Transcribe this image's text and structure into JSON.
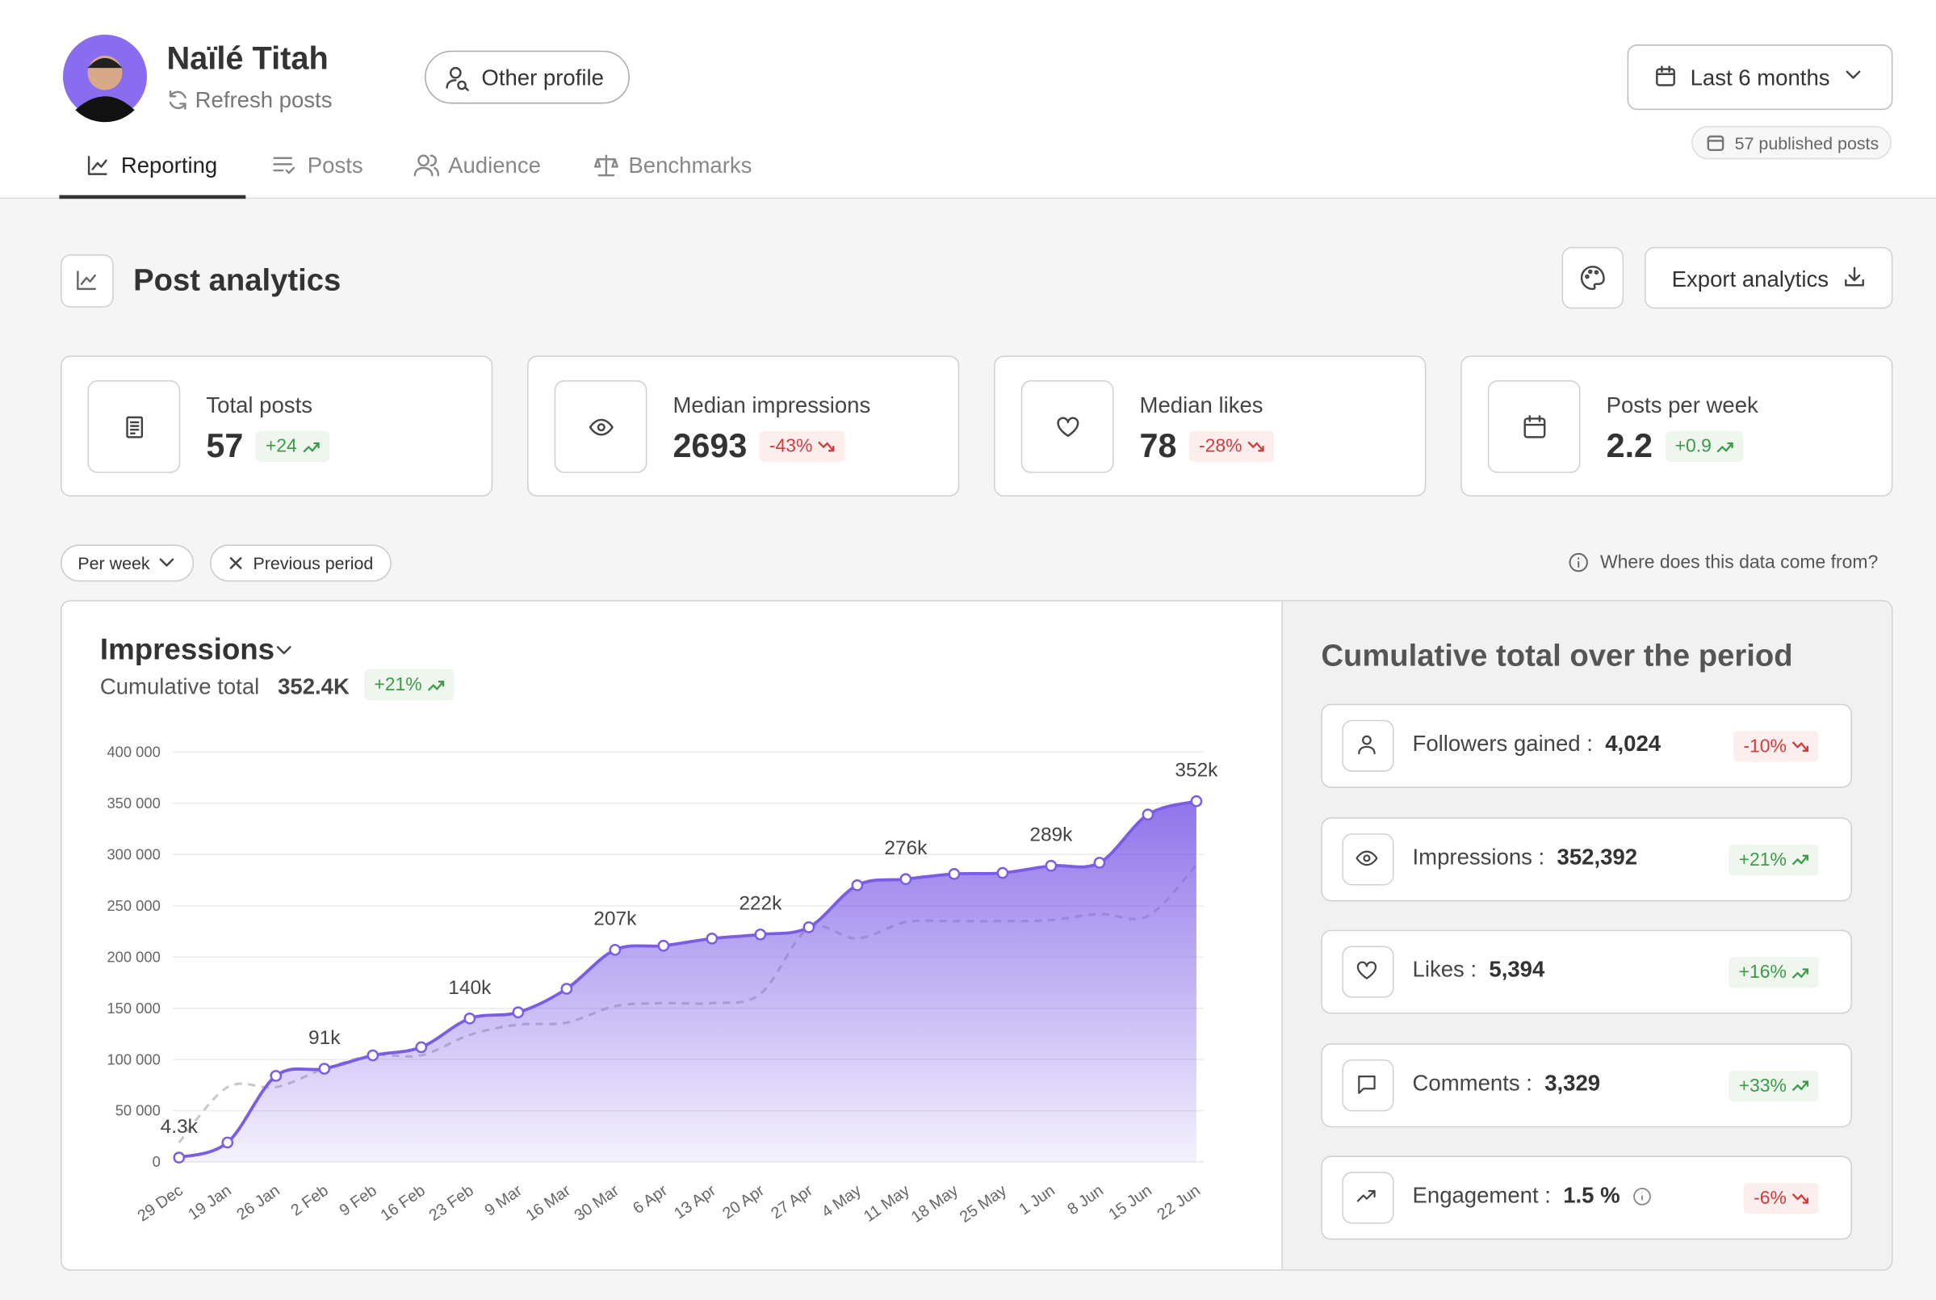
{
  "header": {
    "name": "Naïlé Titah",
    "refresh": "Refresh posts",
    "other_profile": "Other profile",
    "period": "Last 6 months",
    "published": "57 published posts"
  },
  "tabs": [
    "Reporting",
    "Posts",
    "Audience",
    "Benchmarks"
  ],
  "section": {
    "title": "Post analytics",
    "export": "Export analytics"
  },
  "cards": [
    {
      "label": "Total posts",
      "value": "57",
      "delta": "+24"
    },
    {
      "label": "Median impressions",
      "value": "2693",
      "delta": "-43%"
    },
    {
      "label": "Median likes",
      "value": "78",
      "delta": "-28%"
    },
    {
      "label": "Posts per week",
      "value": "2.2",
      "delta": "+0.9"
    }
  ],
  "filters": {
    "per_week": "Per week",
    "previous_period": "Previous period",
    "info": "Where does this data come from?"
  },
  "chart_data": {
    "type": "line",
    "title": "Impressions",
    "subtitle": "Cumulative total",
    "total": "352.4K",
    "delta": "+21%",
    "categories": [
      "29 Dec",
      "19 Jan",
      "26 Jan",
      "2 Feb",
      "9 Feb",
      "16 Feb",
      "23 Feb",
      "9 Mar",
      "16 Mar",
      "30 Mar",
      "6 Apr",
      "13 Apr",
      "20 Apr",
      "27 Apr",
      "4 May",
      "11 May",
      "18 May",
      "25 May",
      "1 Jun",
      "8 Jun",
      "15 Jun",
      "22 Jun"
    ],
    "series": [
      {
        "color": "#7b5ce6",
        "values": [
          4300,
          19000,
          84000,
          91000,
          104000,
          112000,
          140000,
          146000,
          169000,
          207000,
          211000,
          218000,
          222000,
          229000,
          270000,
          276000,
          281000,
          282000,
          289000,
          292000,
          339000,
          352000
        ],
        "value_labels": [
          "4.3k",
          null,
          null,
          "91k",
          null,
          null,
          "140k",
          null,
          null,
          "207k",
          null,
          null,
          "222k",
          null,
          null,
          "276k",
          null,
          null,
          "289k",
          null,
          null,
          "352k"
        ]
      },
      {
        "color": "#c8c8c8",
        "dashed": true,
        "values": [
          19000,
          73000,
          73000,
          91000,
          104000,
          104000,
          124000,
          134000,
          136000,
          152000,
          155000,
          155000,
          164000,
          228000,
          218000,
          234000,
          235000,
          235000,
          236000,
          242000,
          240000,
          290000
        ]
      }
    ],
    "ylim": [
      0,
      400000
    ],
    "yticks": [
      0,
      {
        "value": 50000,
        "label": "50 000"
      },
      {
        "value": 100000,
        "label": "100 000"
      },
      {
        "value": 150000,
        "label": "150 000"
      },
      {
        "value": 200000,
        "label": "200 000"
      },
      {
        "value": 250000,
        "label": "250 000"
      },
      {
        "value": 300000,
        "label": "300 000"
      },
      {
        "value": 350000,
        "label": "350 000"
      },
      {
        "value": 400000,
        "label": "400 000"
      }
    ],
    "grid": true
  },
  "side": {
    "title": "Cumulative total over the period",
    "items": [
      {
        "label": "Followers gained :",
        "value": "4,024",
        "delta": "-10%"
      },
      {
        "label": "Impressions :",
        "value": "352,392",
        "delta": "+21%"
      },
      {
        "label": "Likes :",
        "value": "5,394",
        "delta": "+16%"
      },
      {
        "label": "Comments :",
        "value": "3,329",
        "delta": "+33%"
      },
      {
        "label": "Engagement :",
        "value": "1.5 %",
        "delta": "-6%"
      }
    ]
  }
}
